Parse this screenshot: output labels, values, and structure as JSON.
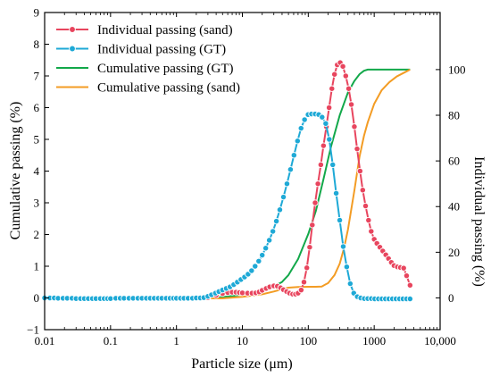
{
  "chart_data": {
    "type": "line",
    "xlabel": "Particle size (μm)",
    "ylabel_left": "Cumulative passing (%)",
    "ylabel_right": "Individual passing (%)",
    "x_scale": "log",
    "xlim": [
      0.01,
      10000
    ],
    "ylim_left": [
      -1,
      9
    ],
    "ylim_right": [
      -13.9,
      125
    ],
    "x_ticks": [
      {
        "value": 0.01,
        "label": "0.01"
      },
      {
        "value": 0.1,
        "label": "0.1"
      },
      {
        "value": 1,
        "label": "1"
      },
      {
        "value": 10,
        "label": "10"
      },
      {
        "value": 100,
        "label": "100"
      },
      {
        "value": 1000,
        "label": "1000"
      },
      {
        "value": 10000,
        "label": "10,000"
      }
    ],
    "y_left_ticks": [
      {
        "value": -1,
        "label": "−1"
      },
      {
        "value": 0,
        "label": "0"
      },
      {
        "value": 1,
        "label": "1"
      },
      {
        "value": 2,
        "label": "2"
      },
      {
        "value": 3,
        "label": "3"
      },
      {
        "value": 4,
        "label": "4"
      },
      {
        "value": 5,
        "label": "5"
      },
      {
        "value": 6,
        "label": "6"
      },
      {
        "value": 7,
        "label": "7"
      },
      {
        "value": 8,
        "label": "8"
      },
      {
        "value": 9,
        "label": "9"
      }
    ],
    "y_right_ticks": [
      {
        "value": 0,
        "label": "0"
      },
      {
        "value": 20,
        "label": "20"
      },
      {
        "value": 40,
        "label": "40"
      },
      {
        "value": 60,
        "label": "60"
      },
      {
        "value": 80,
        "label": "80"
      },
      {
        "value": 100,
        "label": "100"
      }
    ],
    "legend_position": "top-left",
    "grid": false,
    "series": [
      {
        "name": "Individual passing (sand)",
        "axis": "left",
        "style": "line-markers",
        "color": "#e8455e",
        "points": [
          [
            3,
            0.01
          ],
          [
            4,
            0.08
          ],
          [
            5,
            0.14
          ],
          [
            6,
            0.17
          ],
          [
            7,
            0.18
          ],
          [
            8,
            0.18
          ],
          [
            9,
            0.17
          ],
          [
            10,
            0.16
          ],
          [
            12,
            0.15
          ],
          [
            14,
            0.15
          ],
          [
            16,
            0.16
          ],
          [
            18,
            0.19
          ],
          [
            20,
            0.24
          ],
          [
            23,
            0.3
          ],
          [
            26,
            0.35
          ],
          [
            30,
            0.38
          ],
          [
            34,
            0.37
          ],
          [
            38,
            0.32
          ],
          [
            42,
            0.26
          ],
          [
            47,
            0.2
          ],
          [
            52,
            0.15
          ],
          [
            58,
            0.12
          ],
          [
            64,
            0.12
          ],
          [
            70,
            0.15
          ],
          [
            78,
            0.25
          ],
          [
            86,
            0.5
          ],
          [
            95,
            0.95
          ],
          [
            105,
            1.6
          ],
          [
            115,
            2.3
          ],
          [
            127,
            3.0
          ],
          [
            140,
            3.6
          ],
          [
            155,
            4.2
          ],
          [
            170,
            4.8
          ],
          [
            188,
            5.4
          ],
          [
            207,
            6.0
          ],
          [
            228,
            6.6
          ],
          [
            250,
            7.05
          ],
          [
            275,
            7.35
          ],
          [
            305,
            7.42
          ],
          [
            335,
            7.3
          ],
          [
            370,
            7.0
          ],
          [
            410,
            6.6
          ],
          [
            450,
            6.1
          ],
          [
            500,
            5.4
          ],
          [
            550,
            4.7
          ],
          [
            610,
            4.0
          ],
          [
            670,
            3.4
          ],
          [
            740,
            2.9
          ],
          [
            820,
            2.45
          ],
          [
            900,
            2.1
          ],
          [
            1000,
            1.85
          ],
          [
            1100,
            1.72
          ],
          [
            1220,
            1.6
          ],
          [
            1350,
            1.48
          ],
          [
            1500,
            1.36
          ],
          [
            1650,
            1.24
          ],
          [
            1820,
            1.12
          ],
          [
            2000,
            1.02
          ],
          [
            2250,
            0.98
          ],
          [
            2500,
            0.96
          ],
          [
            2800,
            0.94
          ],
          [
            3100,
            0.7
          ],
          [
            3500,
            0.4
          ]
        ]
      },
      {
        "name": "Individual passing (GT)",
        "axis": "left",
        "style": "line-markers",
        "color": "#1ea9d6",
        "points": [
          [
            0.01,
            0.0
          ],
          [
            0.012,
            0.0
          ],
          [
            0.014,
            0.0
          ],
          [
            0.016,
            -0.01
          ],
          [
            0.019,
            -0.01
          ],
          [
            0.022,
            -0.01
          ],
          [
            0.026,
            -0.01
          ],
          [
            0.03,
            -0.02
          ],
          [
            0.035,
            -0.02
          ],
          [
            0.04,
            -0.02
          ],
          [
            0.046,
            -0.02
          ],
          [
            0.053,
            -0.02
          ],
          [
            0.06,
            -0.02
          ],
          [
            0.07,
            -0.02
          ],
          [
            0.08,
            -0.02
          ],
          [
            0.09,
            -0.02
          ],
          [
            0.1,
            -0.02
          ],
          [
            0.12,
            -0.01
          ],
          [
            0.14,
            -0.01
          ],
          [
            0.16,
            -0.01
          ],
          [
            0.19,
            -0.01
          ],
          [
            0.22,
            -0.01
          ],
          [
            0.26,
            -0.01
          ],
          [
            0.3,
            -0.01
          ],
          [
            0.35,
            -0.01
          ],
          [
            0.4,
            -0.01
          ],
          [
            0.46,
            -0.01
          ],
          [
            0.53,
            -0.01
          ],
          [
            0.6,
            -0.01
          ],
          [
            0.7,
            -0.01
          ],
          [
            0.8,
            -0.01
          ],
          [
            0.9,
            -0.01
          ],
          [
            1.0,
            -0.01
          ],
          [
            1.15,
            -0.01
          ],
          [
            1.3,
            -0.01
          ],
          [
            1.5,
            -0.01
          ],
          [
            1.75,
            -0.01
          ],
          [
            2.0,
            0.0
          ],
          [
            2.3,
            0.0
          ],
          [
            2.6,
            0.01
          ],
          [
            3.0,
            0.05
          ],
          [
            3.4,
            0.1
          ],
          [
            3.9,
            0.15
          ],
          [
            4.4,
            0.2
          ],
          [
            5.0,
            0.25
          ],
          [
            5.7,
            0.3
          ],
          [
            6.5,
            0.35
          ],
          [
            7.4,
            0.42
          ],
          [
            8.4,
            0.5
          ],
          [
            9.5,
            0.58
          ],
          [
            10.8,
            0.66
          ],
          [
            12.2,
            0.75
          ],
          [
            13.8,
            0.86
          ],
          [
            15.6,
            1.0
          ],
          [
            17.7,
            1.16
          ],
          [
            20,
            1.35
          ],
          [
            22.6,
            1.57
          ],
          [
            25.6,
            1.82
          ],
          [
            29,
            2.1
          ],
          [
            32.8,
            2.42
          ],
          [
            37,
            2.78
          ],
          [
            42,
            3.18
          ],
          [
            47.5,
            3.6
          ],
          [
            53.7,
            4.05
          ],
          [
            60.7,
            4.5
          ],
          [
            68.7,
            4.95
          ],
          [
            77.7,
            5.35
          ],
          [
            87.8,
            5.62
          ],
          [
            99.3,
            5.78
          ],
          [
            112,
            5.8
          ],
          [
            127,
            5.8
          ],
          [
            144,
            5.78
          ],
          [
            162,
            5.7
          ],
          [
            184,
            5.5
          ],
          [
            208,
            5.0
          ],
          [
            235,
            4.2
          ],
          [
            265,
            3.3
          ],
          [
            300,
            2.45
          ],
          [
            339,
            1.62
          ],
          [
            383,
            0.98
          ],
          [
            433,
            0.45
          ],
          [
            490,
            0.15
          ],
          [
            554,
            0.04
          ],
          [
            626,
            0.0
          ],
          [
            708,
            -0.02
          ],
          [
            800,
            -0.02
          ],
          [
            905,
            -0.02
          ],
          [
            1020,
            -0.03
          ],
          [
            1160,
            -0.03
          ],
          [
            1310,
            -0.03
          ],
          [
            1480,
            -0.03
          ],
          [
            1670,
            -0.03
          ],
          [
            1890,
            -0.03
          ],
          [
            2140,
            -0.03
          ],
          [
            2420,
            -0.03
          ],
          [
            2730,
            -0.03
          ],
          [
            3100,
            -0.03
          ],
          [
            3500,
            -0.03
          ]
        ]
      },
      {
        "name": "Cumulative passing (GT)",
        "axis": "right",
        "style": "line",
        "color": "#12a84a",
        "points": [
          [
            0.08,
            -0.2
          ],
          [
            0.2,
            -0.2
          ],
          [
            0.5,
            -0.2
          ],
          [
            1,
            -0.2
          ],
          [
            2,
            -0.2
          ],
          [
            3,
            -0.2
          ],
          [
            4,
            0.1
          ],
          [
            5,
            0.4
          ],
          [
            7,
            0.8
          ],
          [
            10,
            1.5
          ],
          [
            15,
            2.4
          ],
          [
            20,
            3.4
          ],
          [
            30,
            5.0
          ],
          [
            40,
            7.0
          ],
          [
            50,
            10.0
          ],
          [
            70,
            17.0
          ],
          [
            100,
            28.0
          ],
          [
            130,
            38.0
          ],
          [
            170,
            52.0
          ],
          [
            220,
            66.0
          ],
          [
            300,
            80.0
          ],
          [
            400,
            90.0
          ],
          [
            500,
            95.0
          ],
          [
            600,
            98.0
          ],
          [
            700,
            99.5
          ],
          [
            800,
            100.0
          ],
          [
            1000,
            100.0
          ],
          [
            2000,
            100.0
          ],
          [
            3500,
            100.0
          ]
        ]
      },
      {
        "name": "Cumulative passing (sand)",
        "axis": "right",
        "style": "line",
        "color": "#f39c24",
        "points": [
          [
            0.08,
            -0.2
          ],
          [
            0.5,
            -0.2
          ],
          [
            1,
            -0.2
          ],
          [
            3,
            -0.2
          ],
          [
            5,
            -0.2
          ],
          [
            10,
            0.5
          ],
          [
            20,
            1.6
          ],
          [
            30,
            2.8
          ],
          [
            40,
            3.8
          ],
          [
            50,
            4.5
          ],
          [
            70,
            4.8
          ],
          [
            100,
            4.9
          ],
          [
            130,
            4.9
          ],
          [
            160,
            5.0
          ],
          [
            180,
            5.8
          ],
          [
            200,
            6.5
          ],
          [
            250,
            10.0
          ],
          [
            300,
            15.0
          ],
          [
            350,
            22.0
          ],
          [
            400,
            30.0
          ],
          [
            500,
            47.0
          ],
          [
            600,
            62.0
          ],
          [
            700,
            71.0
          ],
          [
            800,
            77.0
          ],
          [
            1000,
            85.0
          ],
          [
            1300,
            91.0
          ],
          [
            1700,
            94.5
          ],
          [
            2200,
            97.0
          ],
          [
            3000,
            99.0
          ],
          [
            3500,
            100.0
          ]
        ]
      }
    ]
  }
}
